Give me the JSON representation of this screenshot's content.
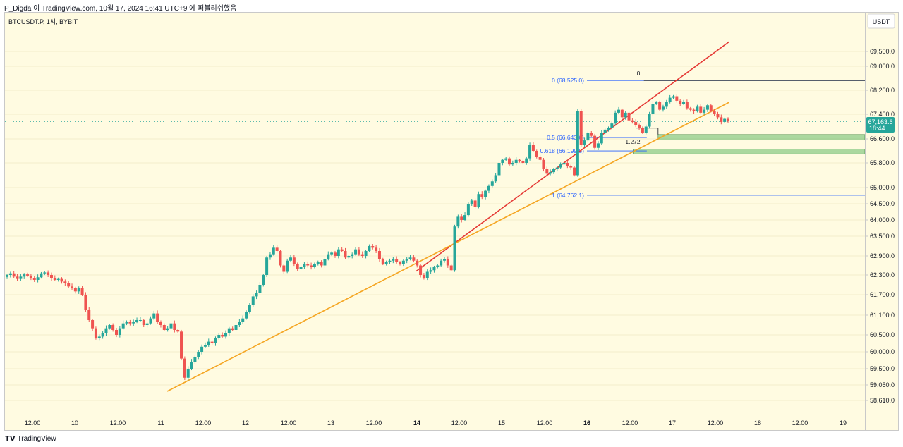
{
  "header": {
    "caption": "P_Digda 이 TradingView.com, 10월 17, 2024 16:41 UTC+9 에 퍼블리쉬했음"
  },
  "chart": {
    "symbol_line": "BTCUSDT.P, 1시, BYBIT",
    "currency": "USDT"
  },
  "footer": {
    "brand": "TradingView",
    "brand_glyph": "TV"
  },
  "colors": {
    "background": "#fffbe1",
    "up_candle": "#26a69a",
    "down_candle": "#ef5350",
    "trendline_red": "#e53935",
    "trendline_orange": "#f5a623",
    "fib_line": "#2962ff",
    "zone": "#66bb6a",
    "price_badge": "#26a69a"
  },
  "chart_data": {
    "type": "candlestick",
    "interval": "1h",
    "x_ticks": [
      "12:00",
      "10",
      "12:00",
      "11",
      "12:00",
      "12",
      "12:00",
      "13",
      "12:00",
      "14",
      "12:00",
      "15",
      "12:00",
      "16",
      "12:00",
      "17",
      "12:00",
      "18",
      "12:00",
      "19"
    ],
    "y_ticks": [
      "69,500.0",
      "69,000.0",
      "68,200.0",
      "67,400.0",
      "66,600.0",
      "65,800.0",
      "65,000.0",
      "64,500.0",
      "64,000.0",
      "63,500.0",
      "62,900.0",
      "62,300.0",
      "61,700.0",
      "61,100.0",
      "60,500.0",
      "60,000.0",
      "59,500.0",
      "59,050.0",
      "58,610.0"
    ],
    "last_price": {
      "value": "67,163.6",
      "countdown": "18:44"
    },
    "fib_levels": [
      {
        "label": "0 (68,525.0)",
        "value": 68525.0
      },
      {
        "label": "0.5 (66,643.6)",
        "value": 66643.6
      },
      {
        "label": "0.618 (66,199.5)",
        "value": 66199.5
      },
      {
        "label": "1 (64,762.1)",
        "value": 64762.1
      }
    ],
    "fib_annotations": [
      "0",
      "1.272"
    ],
    "trendlines": [
      {
        "name": "red",
        "from": {
          "day": 14,
          "hour": 0,
          "price": 62420
        },
        "to": {
          "day": 17,
          "hour": 16,
          "price": 69830
        }
      },
      {
        "name": "orange",
        "from": {
          "day": 11,
          "hour": 2,
          "price": 58870
        },
        "to": {
          "day": 17,
          "hour": 16,
          "price": 67800
        }
      }
    ],
    "zones": [
      {
        "from": {
          "day": 16,
          "hour": 20
        },
        "low": 66560,
        "high": 66740
      },
      {
        "from": {
          "day": 16,
          "hour": 13
        },
        "low": 66100,
        "high": 66260
      }
    ],
    "closes": [
      62300,
      62350,
      62250,
      62180,
      62250,
      62320,
      62280,
      62200,
      62150,
      62230,
      62350,
      62380,
      62300,
      62200,
      62150,
      62180,
      62100,
      62050,
      61950,
      61900,
      61800,
      61900,
      61700,
      61250,
      60950,
      60700,
      60400,
      60450,
      60550,
      60700,
      60800,
      60650,
      60500,
      60700,
      60850,
      60900,
      60850,
      60900,
      60950,
      60950,
      60800,
      60850,
      61000,
      61150,
      60900,
      60800,
      60650,
      60700,
      60850,
      60650,
      60600,
      59800,
      59250,
      59500,
      59700,
      59850,
      60000,
      60150,
      60200,
      60300,
      60250,
      60400,
      60500,
      60450,
      60550,
      60700,
      60650,
      60800,
      60900,
      61000,
      61200,
      61400,
      61650,
      61750,
      62000,
      62300,
      62850,
      62950,
      63150,
      63050,
      62600,
      62400,
      62750,
      62850,
      62650,
      62500,
      62550,
      62650,
      62600,
      62550,
      62650,
      62700,
      62600,
      62800,
      62950,
      63000,
      62900,
      63100,
      63050,
      62850,
      62900,
      62950,
      63100,
      62950,
      62900,
      63050,
      63200,
      63150,
      63050,
      62800,
      62650,
      62700,
      62750,
      62800,
      62700,
      62650,
      62750,
      62800,
      62850,
      62750,
      62600,
      62300,
      62200,
      62400,
      62450,
      62550,
      62600,
      62750,
      62800,
      62600,
      62450,
      63800,
      64100,
      64000,
      64150,
      64500,
      64600,
      64400,
      64800,
      64700,
      64900,
      65050,
      65200,
      65400,
      65800,
      65900,
      65950,
      65750,
      65800,
      65900,
      65850,
      65800,
      65950,
      66400,
      66200,
      66000,
      65900,
      65600,
      65450,
      65500,
      65600,
      65650,
      65750,
      65800,
      65700,
      65650,
      65400,
      67500,
      66400,
      66550,
      66800,
      66700,
      66300,
      66450,
      66800,
      66900,
      66950,
      67100,
      67450,
      67550,
      67300,
      67450,
      67200,
      67150,
      67050,
      66950,
      66800,
      67000,
      67400,
      67750,
      67800,
      67550,
      67650,
      67800,
      67950,
      68000,
      67850,
      67750,
      67800,
      67600,
      67550,
      67500,
      67650,
      67450,
      67550,
      67700,
      67500,
      67400,
      67300,
      67150,
      67250,
      67170
    ]
  }
}
